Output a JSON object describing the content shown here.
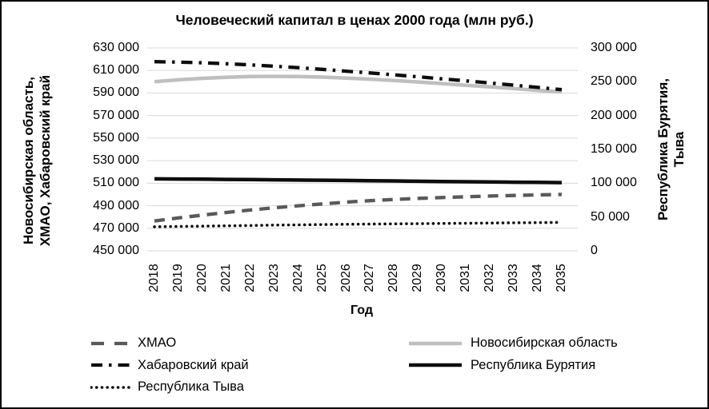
{
  "frame": {
    "background": "#ffffff",
    "border_color": "#000000",
    "text_color": "#000000"
  },
  "chart_data": {
    "type": "line",
    "title": "Человеческий капитал в ценах 2000 года (млн руб.)",
    "xlabel": "Год",
    "grid": "horizontal",
    "grid_color": "#d9d9d9",
    "legend_position": "bottom",
    "left_axis": {
      "label": "Новосибирская область,\nХМАО, Хабаровский край",
      "min": 450000,
      "max": 630000,
      "tick_step": 20000,
      "tick_labels": [
        "630 000",
        "610 000",
        "590 000",
        "570 000",
        "550 000",
        "530 000",
        "510 000",
        "490 000",
        "470 000",
        "450 000"
      ]
    },
    "right_axis": {
      "label": "Республика Бурятия, Тыва",
      "min": 0,
      "max": 300000,
      "tick_step": 50000,
      "tick_labels": [
        "300 000",
        "250 000",
        "200 000",
        "150 000",
        "100 000",
        "50 000",
        "0"
      ]
    },
    "x_tick_labels": [
      "2018",
      "2019",
      "2020",
      "2021",
      "2022",
      "2023",
      "2024",
      "2025",
      "2026",
      "2027",
      "2028",
      "2029",
      "2030",
      "2031",
      "2032",
      "2033",
      "2034",
      "2035"
    ],
    "series": [
      {
        "key": "novosibirskaya-oblast",
        "name": "Новосибирская область",
        "axis": "left",
        "style": "solid",
        "color": "#bfbfbf",
        "width": 4.5,
        "values": [
          600000,
          601700,
          603000,
          604000,
          604600,
          604800,
          604600,
          604100,
          603300,
          602300,
          601100,
          599800,
          598400,
          596900,
          595400,
          593900,
          592400,
          591000
        ]
      },
      {
        "key": "khmao",
        "name": "ХМАО",
        "axis": "left",
        "style": "dashed",
        "color": "#595959",
        "width": 4.3,
        "dash": "13 9",
        "values": [
          476500,
          479200,
          481700,
          484000,
          486200,
          488200,
          490000,
          491600,
          493200,
          494500,
          495600,
          496500,
          497300,
          498000,
          498600,
          499100,
          499600,
          500000
        ]
      },
      {
        "key": "respublika-tyva",
        "name": "Республика Тыва",
        "axis": "right",
        "style": "dotted",
        "color": "#0d0d0d",
        "width": 3.6,
        "dash": "0.1 6.6",
        "cap": "round",
        "values": [
          35500,
          36000,
          36500,
          37000,
          37500,
          38000,
          38400,
          38800,
          39200,
          39600,
          39900,
          40200,
          40500,
          40800,
          41100,
          41400,
          41700,
          42000
        ]
      },
      {
        "key": "respublika-buryatia",
        "name": "Республика Бурятия",
        "axis": "right",
        "style": "solid",
        "color": "#0d0d0d",
        "width": 4.5,
        "values": [
          106400,
          106200,
          105900,
          105600,
          105300,
          105000,
          104700,
          104400,
          104000,
          103700,
          103300,
          102900,
          102500,
          102200,
          101800,
          101500,
          101200,
          100900
        ]
      },
      {
        "key": "khabarovskiy-kray",
        "name": "Хабаровский край",
        "axis": "left",
        "style": "dash-dot",
        "color": "#0d0d0d",
        "width": 4.3,
        "dash": "14 8 3.5 8",
        "values": [
          617800,
          617400,
          616800,
          616000,
          615000,
          613800,
          612500,
          611000,
          609400,
          607800,
          606100,
          604400,
          602600,
          600800,
          598900,
          597000,
          595000,
          593000
        ]
      }
    ],
    "legend_columns": [
      [
        "ХМАО",
        "Хабаровский край",
        "Республика Тыва"
      ],
      [
        "Новосибирская область",
        "Республика Бурятия"
      ]
    ]
  }
}
